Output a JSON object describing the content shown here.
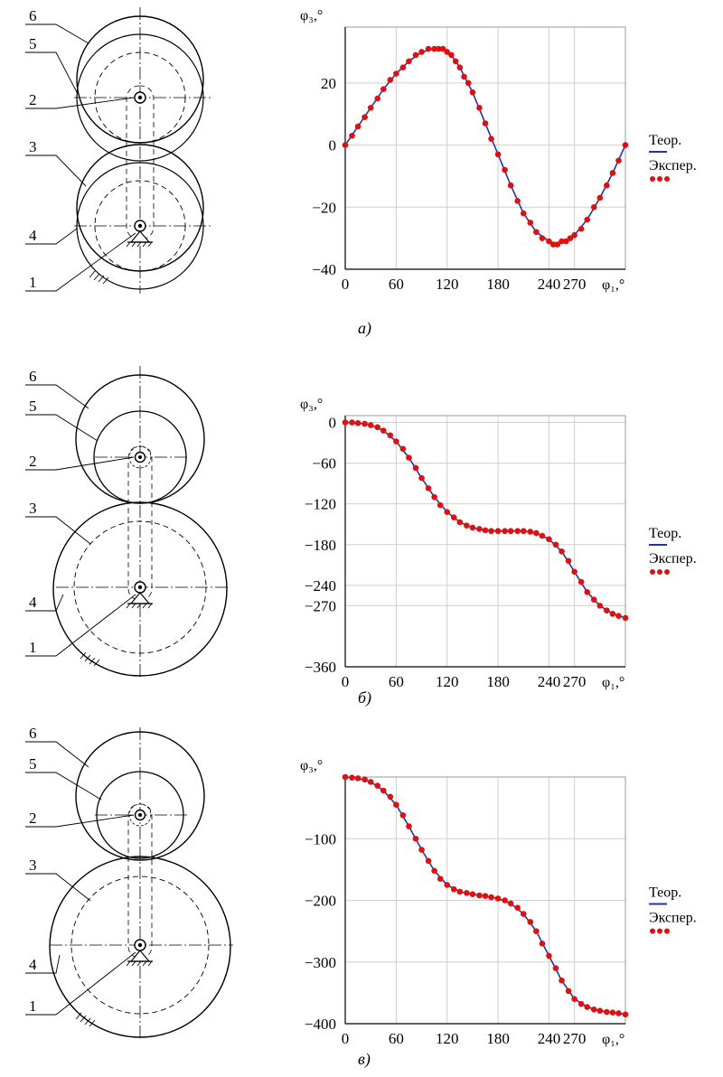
{
  "colors": {
    "theory": "#2233aa",
    "experiment": "#dd1111",
    "grid": "#cfcfcf",
    "axis": "#000000"
  },
  "mechanism_labels": [
    "6",
    "5",
    "2",
    "3",
    "4",
    "1"
  ],
  "legend": {
    "theory": "Теор.",
    "experiment": "Экспер."
  },
  "chart_data": [
    {
      "id": "a",
      "type": "line",
      "caption": "а)",
      "ylabel": "φ₃,°",
      "xlabel": "φ₁,°",
      "x_ticks": [
        "0",
        "60",
        "120",
        "180",
        "240",
        "270"
      ],
      "x_tick_values": [
        0,
        60,
        120,
        180,
        240,
        270
      ],
      "y_ticks": [
        "20",
        "0",
        "−20",
        "−40"
      ],
      "y_tick_values": [
        20,
        0,
        -20,
        -40
      ],
      "xlim": [
        0,
        330
      ],
      "ylim": [
        -40,
        38
      ],
      "grid": true,
      "series": [
        {
          "name": "Теор.",
          "x": [
            0,
            15,
            30,
            45,
            60,
            75,
            90,
            105,
            115,
            125,
            135,
            150,
            165,
            180,
            195,
            210,
            225,
            240,
            250,
            260,
            270,
            285,
            300,
            315,
            330
          ],
          "values": [
            0,
            6,
            12,
            18,
            23,
            27,
            30,
            31,
            31,
            29,
            25,
            17,
            7,
            -3,
            -13,
            -22,
            -28,
            -31,
            -32,
            -31,
            -29,
            -24,
            -17,
            -9,
            0
          ]
        },
        {
          "name": "Экспер.",
          "x": [
            0,
            8,
            15,
            23,
            30,
            38,
            45,
            53,
            60,
            68,
            75,
            83,
            90,
            98,
            105,
            110,
            115,
            120,
            125,
            130,
            135,
            140,
            145,
            150,
            158,
            165,
            172,
            180,
            188,
            195,
            203,
            210,
            218,
            225,
            232,
            240,
            245,
            250,
            255,
            260,
            265,
            270,
            278,
            285,
            293,
            300,
            308,
            315,
            322,
            330
          ],
          "values": [
            0,
            3,
            6,
            9,
            12,
            15,
            18,
            21,
            23,
            25,
            27,
            29,
            30,
            31,
            31,
            31,
            31,
            30,
            29,
            27,
            25,
            22,
            20,
            17,
            12,
            7,
            2,
            -3,
            -8,
            -13,
            -18,
            -22,
            -25,
            -28,
            -30,
            -31,
            -32,
            -32,
            -31,
            -31,
            -30,
            -29,
            -27,
            -24,
            -20,
            -17,
            -13,
            -9,
            -5,
            0
          ]
        }
      ]
    },
    {
      "id": "b",
      "type": "line",
      "caption": "б)",
      "ylabel": "φ₃,°",
      "xlabel": "φ₁,°",
      "x_ticks": [
        "0",
        "60",
        "120",
        "180",
        "240",
        "270"
      ],
      "x_tick_values": [
        0,
        60,
        120,
        180,
        240,
        270
      ],
      "y_ticks": [
        "0",
        "−60",
        "−120",
        "−180",
        "−240",
        "−270",
        "−360"
      ],
      "y_tick_values": [
        0,
        -60,
        -120,
        -180,
        -240,
        -270,
        -360
      ],
      "xlim": [
        0,
        330
      ],
      "ylim": [
        -360,
        10
      ],
      "grid": true,
      "series": [
        {
          "name": "Теор.",
          "x": [
            0,
            15,
            30,
            45,
            60,
            75,
            90,
            105,
            120,
            135,
            150,
            165,
            180,
            195,
            210,
            225,
            240,
            255,
            270,
            285,
            300,
            315,
            330
          ],
          "values": [
            0,
            -1,
            -4,
            -12,
            -28,
            -52,
            -82,
            -110,
            -132,
            -147,
            -155,
            -159,
            -160,
            -160,
            -160,
            -163,
            -172,
            -190,
            -220,
            -250,
            -270,
            -282,
            -288
          ]
        },
        {
          "name": "Экспер.",
          "x": [
            0,
            8,
            15,
            23,
            30,
            38,
            45,
            53,
            60,
            68,
            75,
            83,
            90,
            98,
            105,
            112,
            120,
            128,
            135,
            143,
            150,
            158,
            165,
            172,
            180,
            188,
            195,
            203,
            210,
            218,
            225,
            232,
            240,
            248,
            255,
            263,
            270,
            278,
            285,
            293,
            300,
            308,
            315,
            322,
            330
          ],
          "values": [
            0,
            0,
            -1,
            -2,
            -4,
            -7,
            -12,
            -19,
            -28,
            -39,
            -52,
            -67,
            -82,
            -97,
            -110,
            -122,
            -132,
            -140,
            -147,
            -152,
            -155,
            -157,
            -159,
            -160,
            -160,
            -160,
            -160,
            -160,
            -160,
            -161,
            -163,
            -167,
            -172,
            -180,
            -190,
            -204,
            -220,
            -235,
            -250,
            -261,
            -270,
            -277,
            -282,
            -285,
            -288
          ]
        }
      ]
    },
    {
      "id": "c",
      "type": "line",
      "caption": "в)",
      "ylabel": "φ₃,°",
      "xlabel": "φ₁,°",
      "x_ticks": [
        "0",
        "60",
        "120",
        "180",
        "240",
        "270"
      ],
      "x_tick_values": [
        0,
        60,
        120,
        180,
        240,
        270
      ],
      "y_ticks": [
        "−100",
        "−200",
        "−300",
        "−400"
      ],
      "y_tick_values": [
        -100,
        -200,
        -300,
        -400
      ],
      "xlim": [
        0,
        330
      ],
      "ylim": [
        -400,
        0
      ],
      "grid": true,
      "series": [
        {
          "name": "Теор.",
          "x": [
            0,
            15,
            30,
            45,
            60,
            75,
            90,
            105,
            120,
            135,
            150,
            165,
            180,
            195,
            210,
            225,
            240,
            255,
            270,
            285,
            300,
            315,
            330
          ],
          "values": [
            0,
            -2,
            -8,
            -22,
            -45,
            -80,
            -118,
            -152,
            -175,
            -186,
            -190,
            -193,
            -197,
            -205,
            -222,
            -250,
            -290,
            -330,
            -360,
            -373,
            -379,
            -382,
            -385
          ]
        },
        {
          "name": "Экспер.",
          "x": [
            0,
            8,
            15,
            23,
            30,
            38,
            45,
            53,
            60,
            68,
            75,
            83,
            90,
            98,
            105,
            112,
            120,
            128,
            135,
            143,
            150,
            158,
            165,
            172,
            180,
            188,
            195,
            203,
            210,
            218,
            225,
            232,
            240,
            248,
            255,
            263,
            270,
            278,
            285,
            293,
            300,
            308,
            315,
            322,
            330
          ],
          "values": [
            0,
            -1,
            -2,
            -4,
            -8,
            -14,
            -22,
            -32,
            -45,
            -62,
            -80,
            -100,
            -118,
            -136,
            -152,
            -165,
            -175,
            -182,
            -186,
            -188,
            -190,
            -192,
            -193,
            -195,
            -197,
            -200,
            -205,
            -212,
            -222,
            -235,
            -250,
            -270,
            -290,
            -310,
            -330,
            -347,
            -360,
            -368,
            -373,
            -377,
            -379,
            -381,
            -382,
            -383,
            -385
          ]
        }
      ]
    }
  ]
}
